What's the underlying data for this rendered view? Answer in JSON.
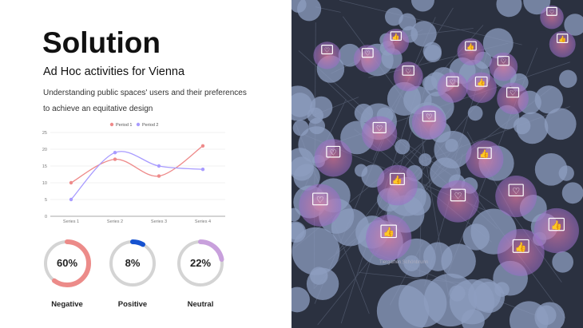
{
  "slide": {
    "title": "Solution",
    "subtitle": "Ad Hoc activities for Vienna",
    "description": "Understanding public spaces' users and their preferences to achieve an equitative design"
  },
  "chart_data": {
    "type": "line",
    "categories": [
      "Series 1",
      "Series 2",
      "Series 3",
      "Series 4"
    ],
    "series": [
      {
        "name": "Period 1",
        "values": [
          10,
          17,
          12,
          21
        ],
        "color": "#ee8a8a"
      },
      {
        "name": "Period 2",
        "values": [
          5,
          19,
          15,
          14
        ],
        "color": "#a89bff"
      }
    ],
    "yticks": [
      0,
      5,
      10,
      15,
      20,
      25
    ],
    "ylim": [
      0,
      25
    ],
    "grid": true,
    "legend": "top",
    "smooth": true
  },
  "sentiment": [
    {
      "label": "Negative",
      "value": 60,
      "display": "60%",
      "color": "#ec8b89"
    },
    {
      "label": "Positive",
      "value": 8,
      "display": "8%",
      "color": "#1652d0"
    },
    {
      "label": "Neutral",
      "value": 22,
      "display": "22%",
      "color": "#c8a0dc"
    }
  ],
  "map": {
    "background": "#2b3140",
    "bubble_color": "#8d9ec0",
    "markers": [
      "heart",
      "thumbs-up",
      "heart",
      "thumbs-up",
      "heart",
      "heart",
      "thumbs-up",
      "heart",
      "thumbs-up",
      "heart",
      "thumbs-up",
      "heart",
      "heart",
      "thumbs-up",
      "heart",
      "thumbs-up",
      "heart",
      "heart",
      "thumbs-up",
      "heart",
      "heart",
      "thumbs-up"
    ],
    "labels": [
      "Tiergarten Schönbrunn"
    ]
  }
}
